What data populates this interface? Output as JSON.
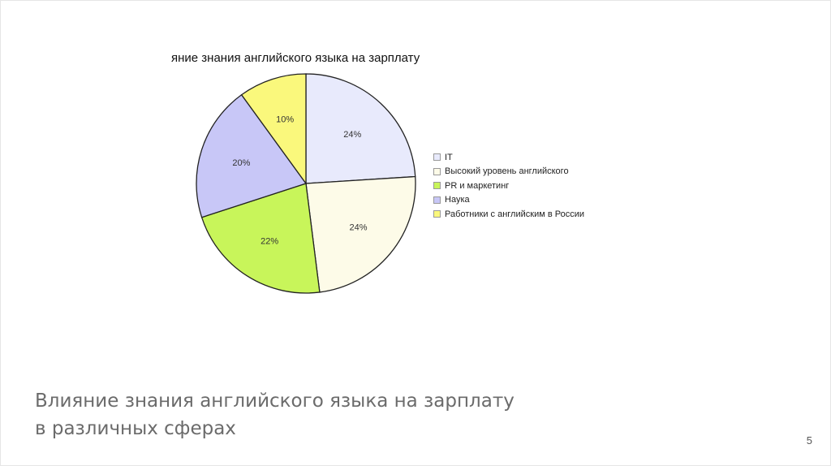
{
  "slide": {
    "caption": "Влияние знания английского языка на зарплату в различных сферах",
    "page_number": "5"
  },
  "chart_data": {
    "type": "pie",
    "title": "яние знания английского языка на зарплату",
    "legend_position": "right",
    "slices": [
      {
        "label": "IT",
        "value": 24,
        "display": "24%",
        "color": "#e8eafc"
      },
      {
        "label": "Высокий уровень английского",
        "value": 24,
        "display": "24%",
        "color": "#fdfbe8"
      },
      {
        "label": "PR и маркетинг",
        "value": 22,
        "display": "22%",
        "color": "#c8f55a"
      },
      {
        "label": "Наука",
        "value": 20,
        "display": "20%",
        "color": "#c8c7f7"
      },
      {
        "label": "Работники с английским в России",
        "value": 10,
        "display": "10%",
        "color": "#faf87c"
      }
    ]
  }
}
